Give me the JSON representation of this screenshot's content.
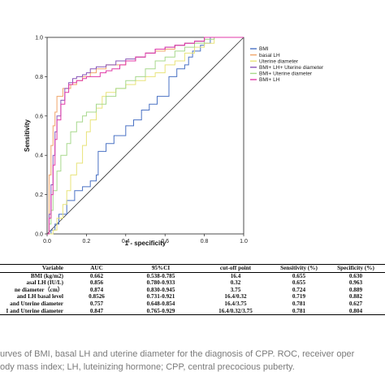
{
  "chart_data": {
    "type": "line",
    "xlabel": "1 - specificity",
    "ylabel": "Sensitivity",
    "xlim": [
      0,
      1
    ],
    "ylim": [
      0,
      1
    ],
    "x_ticks": [
      "0.0",
      "0.2",
      "0.4",
      "0.6",
      "0.8",
      "1.0"
    ],
    "y_ticks": [
      "0.0",
      "0.2",
      "0.4",
      "0.6",
      "0.8",
      "1.0"
    ],
    "legend_position": "top-right",
    "grid": false,
    "series": [
      {
        "name": "BMI",
        "color": "#4a72c4",
        "x": [
          0,
          0.02,
          0.04,
          0.06,
          0.1,
          0.14,
          0.18,
          0.22,
          0.25,
          0.26,
          0.3,
          0.34,
          0.4,
          0.44,
          0.48,
          0.52,
          0.56,
          0.6,
          0.62,
          0.63,
          0.66,
          0.7,
          0.72,
          0.74,
          0.78,
          0.8,
          0.83,
          0.85,
          1.0
        ],
        "y": [
          0,
          0.02,
          0.05,
          0.1,
          0.17,
          0.22,
          0.24,
          0.27,
          0.3,
          0.42,
          0.46,
          0.5,
          0.55,
          0.58,
          0.63,
          0.66,
          0.7,
          0.7,
          0.8,
          0.8,
          0.84,
          0.86,
          0.9,
          0.93,
          0.96,
          0.97,
          1.0,
          1.0,
          1.0
        ]
      },
      {
        "name": "basal LH",
        "color": "#f0a56a",
        "x": [
          0,
          0.01,
          0.02,
          0.03,
          0.04,
          0.05,
          0.08,
          0.12,
          0.15,
          0.18,
          0.22,
          0.25,
          0.3,
          0.35,
          0.4,
          0.45,
          0.5,
          0.55,
          0.6,
          0.65,
          0.7,
          0.75,
          0.8,
          0.85,
          1.0
        ],
        "y": [
          0,
          0.3,
          0.45,
          0.55,
          0.62,
          0.7,
          0.74,
          0.76,
          0.78,
          0.8,
          0.82,
          0.84,
          0.86,
          0.86,
          0.88,
          0.9,
          0.92,
          0.93,
          0.94,
          0.96,
          0.97,
          0.98,
          1.0,
          1.0,
          1.0
        ]
      },
      {
        "name": "Uterine diameter",
        "color": "#e8e37a",
        "x": [
          0,
          0.03,
          0.05,
          0.08,
          0.1,
          0.12,
          0.15,
          0.18,
          0.2,
          0.22,
          0.25,
          0.28,
          0.3,
          0.35,
          0.4,
          0.45,
          0.5,
          0.55,
          0.6,
          0.65,
          0.7,
          0.75,
          0.8,
          0.85,
          1.0
        ],
        "y": [
          0,
          0.02,
          0.08,
          0.15,
          0.22,
          0.3,
          0.36,
          0.45,
          0.52,
          0.58,
          0.64,
          0.7,
          0.72,
          0.74,
          0.76,
          0.78,
          0.8,
          0.82,
          0.86,
          0.88,
          0.92,
          0.95,
          0.97,
          1.0,
          1.0
        ]
      },
      {
        "name": "BMI+ LH+ Uterine diameter",
        "color": "#8a56b8",
        "x": [
          0,
          0.01,
          0.02,
          0.03,
          0.04,
          0.05,
          0.07,
          0.09,
          0.11,
          0.13,
          0.15,
          0.18,
          0.2,
          0.22,
          0.25,
          0.3,
          0.35,
          0.4,
          0.45,
          0.5,
          0.55,
          0.6,
          0.65,
          0.7,
          0.75,
          0.8,
          0.85,
          1.0
        ],
        "y": [
          0,
          0.1,
          0.25,
          0.4,
          0.52,
          0.6,
          0.68,
          0.74,
          0.77,
          0.79,
          0.8,
          0.81,
          0.82,
          0.84,
          0.85,
          0.86,
          0.88,
          0.89,
          0.9,
          0.92,
          0.94,
          0.95,
          0.96,
          0.97,
          0.98,
          1.0,
          1.0,
          1.0
        ]
      },
      {
        "name": "BMI+ Uterine diameter",
        "color": "#a7d88c",
        "x": [
          0,
          0.01,
          0.02,
          0.03,
          0.05,
          0.07,
          0.1,
          0.12,
          0.15,
          0.18,
          0.2,
          0.25,
          0.3,
          0.35,
          0.4,
          0.45,
          0.5,
          0.55,
          0.6,
          0.65,
          0.7,
          0.75,
          0.8,
          0.85,
          1.0
        ],
        "y": [
          0,
          0.05,
          0.12,
          0.22,
          0.32,
          0.4,
          0.46,
          0.52,
          0.57,
          0.6,
          0.62,
          0.66,
          0.7,
          0.74,
          0.78,
          0.8,
          0.84,
          0.88,
          0.9,
          0.93,
          0.95,
          0.97,
          0.99,
          1.0,
          1.0
        ]
      },
      {
        "name": "BMI+ LH",
        "color": "#e03aa8",
        "x": [
          0,
          0.01,
          0.02,
          0.03,
          0.04,
          0.05,
          0.07,
          0.09,
          0.11,
          0.13,
          0.15,
          0.18,
          0.2,
          0.23,
          0.27,
          0.3,
          0.33,
          0.37,
          0.4,
          0.45,
          0.5,
          0.55,
          0.6,
          0.65,
          0.7,
          0.75,
          0.8,
          0.85,
          1.0
        ],
        "y": [
          0,
          0.08,
          0.2,
          0.35,
          0.48,
          0.58,
          0.66,
          0.72,
          0.76,
          0.77,
          0.78,
          0.79,
          0.8,
          0.8,
          0.82,
          0.83,
          0.84,
          0.86,
          0.88,
          0.9,
          0.92,
          0.94,
          0.95,
          0.96,
          0.97,
          0.98,
          1.0,
          1.0,
          1.0
        ]
      }
    ]
  },
  "table": {
    "columns": [
      "Variable",
      "AUC",
      "95%CI",
      "cut-off point",
      "Sensitivity (%)",
      "Specificity (%)"
    ],
    "rows": [
      [
        "BMI (kg/m2)",
        "0.662",
        "0.538-0.785",
        "16.4",
        "0.655",
        "0.630"
      ],
      [
        "asal LH (IU/L)",
        "0.856",
        "0.780-0.933",
        "0.32",
        "0.655",
        "0.963"
      ],
      [
        "ne diameter（cm）",
        "0.874",
        "0.830-0.945",
        "3.75",
        "0.724",
        "0.889"
      ],
      [
        "and LH basal level",
        "0.8526",
        "0.731-0.921",
        "16.4/0.32",
        "0.719",
        "0.882"
      ],
      [
        "and Uterine diameter",
        "0.757",
        "0.648-0.854",
        "16.4/3.75",
        "0.781",
        "0.627"
      ],
      [
        "I and Uterine diameter",
        "0.847",
        "0.765-0.929",
        "16.4/0.32/3.75",
        "0.781",
        "0.804"
      ]
    ]
  },
  "caption": {
    "line1": "urves of BMI, basal LH and uterine diameter for the diagnosis of CPP. ROC, receiver oper",
    "line2": "ody mass index; LH, luteinizing hormone; CPP, central precocious puberty."
  }
}
